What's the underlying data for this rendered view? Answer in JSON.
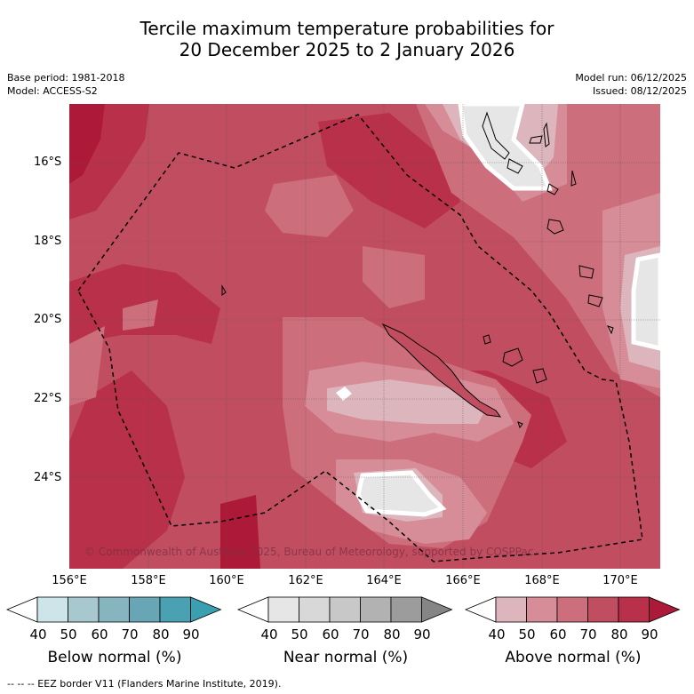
{
  "title": {
    "line1": "Tercile maximum temperature probabilities for",
    "line2": "20 December 2025 to 2 January 2026"
  },
  "meta_left": {
    "base_period": "Base period: 1981-2018",
    "model": "Model: ACCESS-S2"
  },
  "meta_right": {
    "model_run": "Model run: 06/12/2025",
    "issued": "Issued: 08/12/2025"
  },
  "axes": {
    "lat_labels": [
      "16°S",
      "18°S",
      "20°S",
      "22°S",
      "24°S"
    ],
    "lon_labels": [
      "156°E",
      "158°E",
      "160°E",
      "162°E",
      "164°E",
      "166°E",
      "168°E",
      "170°E"
    ]
  },
  "copyright": "© Commonwealth of Australia 2025, Bureau of Meteorology, supported by COSPPac",
  "colorbars": {
    "ticks": [
      "40",
      "50",
      "60",
      "70",
      "80",
      "90"
    ],
    "below": {
      "label": "Below normal (%)",
      "colors": [
        "#ffffff",
        "#cde4e9",
        "#a7c8cf",
        "#86b4bf",
        "#68a6b5",
        "#4aa1b2",
        "#3a9fb0"
      ]
    },
    "near": {
      "label": "Near normal (%)",
      "colors": [
        "#ffffff",
        "#e6e6e6",
        "#d8d8d8",
        "#c8c8c8",
        "#b2b2b2",
        "#9c9c9c",
        "#858585"
      ]
    },
    "above": {
      "label": "Above normal (%)",
      "colors": [
        "#ffffff",
        "#ddb5bc",
        "#d68d98",
        "#cc6e7c",
        "#c14d60",
        "#b83049",
        "#ad1a39"
      ]
    }
  },
  "footnote": "-- -- -- EEZ border V11 (Flanders Marine Institute, 2019)."
}
